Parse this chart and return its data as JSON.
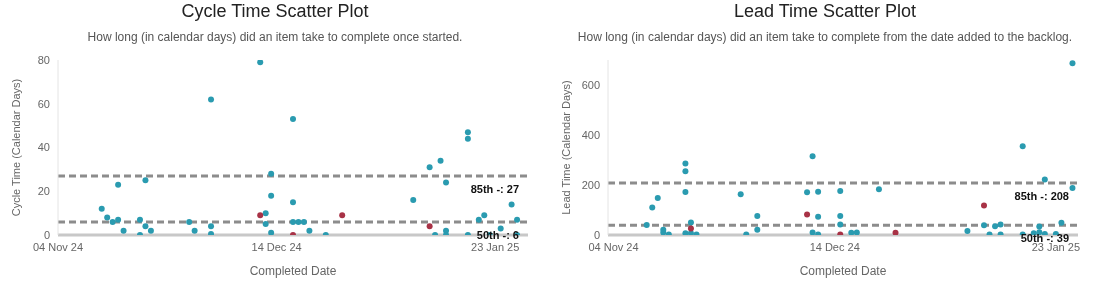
{
  "chart_data": [
    {
      "type": "scatter",
      "title": "Cycle Time Scatter Plot",
      "subtitle": "How long (in calendar days) did an item take to complete once started.",
      "xlabel": "Completed Date",
      "ylabel": "Cycle Time (Calendar Days)",
      "marker": "circle",
      "xlim": [
        "2024-11-04",
        "2025-01-29"
      ],
      "xticks": [
        {
          "value": "2024-11-04",
          "label": "04 Nov 24"
        },
        {
          "value": "2024-12-14",
          "label": "14 Dec 24"
        },
        {
          "value": "2025-01-23",
          "label": "23 Jan 25"
        }
      ],
      "ylim": [
        0,
        80
      ],
      "yticks": [
        0,
        20,
        40,
        60,
        80
      ],
      "ref_lines": [
        {
          "axis": "y",
          "value": 27,
          "label": "85th -: 27",
          "color": "#8c8c8c",
          "line_style": "dashed"
        },
        {
          "axis": "y",
          "value": 6,
          "label": "50th -: 6",
          "color": "#8c8c8c",
          "line_style": "dashed"
        }
      ],
      "series": [
        {
          "color": "#2a9bb0",
          "x": [
            "2024-11-12",
            "2024-11-13",
            "2024-11-14",
            "2024-11-15",
            "2024-11-15",
            "2024-11-16",
            "2024-11-19",
            "2024-11-19",
            "2024-11-20",
            "2024-11-20",
            "2024-11-21",
            "2024-11-28",
            "2024-11-29",
            "2024-12-02",
            "2024-12-02",
            "2024-12-02",
            "2024-12-11",
            "2024-12-12",
            "2024-12-12",
            "2024-12-13",
            "2024-12-13",
            "2024-12-13",
            "2024-12-17",
            "2024-12-17",
            "2024-12-17",
            "2024-12-18",
            "2024-12-19",
            "2024-12-20",
            "2024-12-23",
            "2025-01-08",
            "2025-01-11",
            "2025-01-12",
            "2025-01-13",
            "2025-01-14",
            "2025-01-14",
            "2025-01-14",
            "2025-01-18",
            "2025-01-18",
            "2025-01-18",
            "2025-01-20",
            "2025-01-21",
            "2025-01-22",
            "2025-01-24",
            "2025-01-26",
            "2025-01-27",
            "2025-01-27"
          ],
          "values": [
            12,
            8,
            6,
            23,
            7,
            2,
            0,
            7,
            25,
            4,
            2,
            6,
            2,
            62,
            4,
            0.5,
            79,
            10,
            5,
            28,
            18,
            1,
            53,
            15,
            6,
            6,
            6,
            2,
            0,
            16,
            31,
            0,
            34,
            24,
            2,
            0,
            47,
            44,
            0,
            7,
            9,
            0,
            3,
            14,
            7,
            0
          ]
        },
        {
          "color": "#a83246",
          "x": [
            "2024-12-11",
            "2024-12-17",
            "2024-12-26",
            "2025-01-11"
          ],
          "values": [
            9,
            0,
            9,
            4
          ]
        }
      ]
    },
    {
      "type": "scatter",
      "title": "Lead Time Scatter Plot",
      "subtitle": "How long (in calendar days) did an item take to complete from the date added to the backlog.",
      "xlabel": "Completed Date",
      "ylabel": "Lead Time (Calendar Days)",
      "marker": "circle",
      "xlim": [
        "2024-11-03",
        "2025-01-27"
      ],
      "xticks": [
        {
          "value": "2024-11-04",
          "label": "04 Nov 24"
        },
        {
          "value": "2024-12-14",
          "label": "14 Dec 24"
        },
        {
          "value": "2025-01-23",
          "label": "23 Jan 25"
        }
      ],
      "ylim": [
        0,
        700
      ],
      "yticks": [
        0,
        200,
        400,
        600
      ],
      "ref_lines": [
        {
          "axis": "y",
          "value": 208,
          "label": "85th -: 208",
          "color": "#8c8c8c",
          "line_style": "dashed"
        },
        {
          "axis": "y",
          "value": 39,
          "label": "50th -: 39",
          "color": "#8c8c8c",
          "line_style": "dashed"
        }
      ],
      "series": [
        {
          "color": "#2a9bb0",
          "x": [
            "2024-11-10",
            "2024-11-11",
            "2024-11-12",
            "2024-11-13",
            "2024-11-13",
            "2024-11-14",
            "2024-11-17",
            "2024-11-17",
            "2024-11-17",
            "2024-11-17",
            "2024-11-18",
            "2024-11-18",
            "2024-11-19",
            "2024-11-27",
            "2024-11-28",
            "2024-11-30",
            "2024-11-30",
            "2024-12-09",
            "2024-12-10",
            "2024-12-10",
            "2024-12-11",
            "2024-12-11",
            "2024-12-11",
            "2024-12-15",
            "2024-12-15",
            "2024-12-15",
            "2024-12-17",
            "2024-12-18",
            "2024-12-22",
            "2025-01-07",
            "2025-01-10",
            "2025-01-11",
            "2025-01-12",
            "2025-01-13",
            "2025-01-13",
            "2025-01-17",
            "2025-01-17",
            "2025-01-19",
            "2025-01-20",
            "2025-01-20",
            "2025-01-21",
            "2025-01-21",
            "2025-01-23",
            "2025-01-24",
            "2025-01-26",
            "2025-01-26"
          ],
          "values": [
            40,
            110,
            148,
            21,
            10,
            2,
            286,
            255,
            172,
            7,
            50,
            7,
            2,
            163,
            2,
            76,
            21,
            171,
            315,
            10,
            173,
            73,
            2,
            176,
            76,
            42,
            9,
            10,
            183,
            16,
            39,
            2,
            35,
            42,
            2,
            355,
            2,
            7,
            34,
            11,
            222,
            4,
            4,
            49,
            687,
            188
          ]
        },
        {
          "color": "#a83246",
          "x": [
            "2024-11-18",
            "2024-12-09",
            "2024-12-15",
            "2024-12-25",
            "2025-01-10"
          ],
          "values": [
            26,
            82,
            2,
            9,
            118
          ]
        }
      ]
    }
  ]
}
